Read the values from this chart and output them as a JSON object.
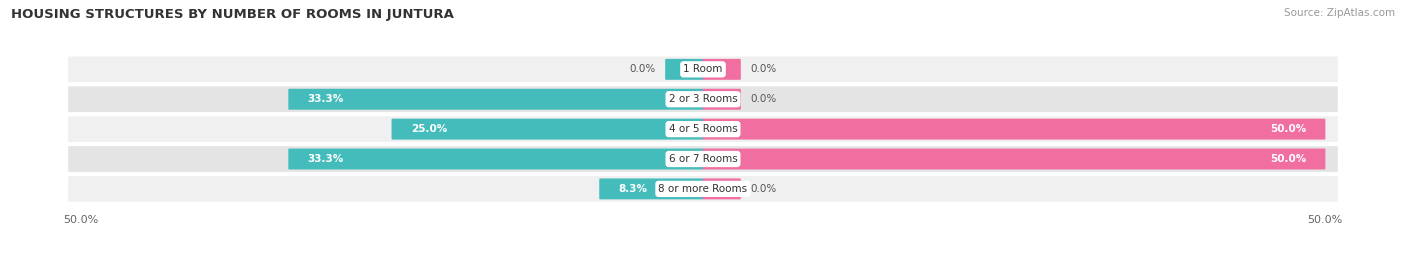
{
  "title": "HOUSING STRUCTURES BY NUMBER OF ROOMS IN JUNTURA",
  "source": "Source: ZipAtlas.com",
  "categories": [
    "1 Room",
    "2 or 3 Rooms",
    "4 or 5 Rooms",
    "6 or 7 Rooms",
    "8 or more Rooms"
  ],
  "owner_values": [
    0.0,
    33.3,
    25.0,
    33.3,
    8.3
  ],
  "renter_values": [
    0.0,
    0.0,
    50.0,
    50.0,
    0.0
  ],
  "owner_color": "#45BCBC",
  "renter_color": "#F06EA0",
  "row_bg_light": "#F0F0F0",
  "row_bg_dark": "#E4E4E4",
  "center_label_bg": "#FFFFFF",
  "background_color": "#FFFFFF",
  "axis_range": 50,
  "stub_value": 3.0,
  "label_color_dark": "#555555",
  "label_color_white": "#FFFFFF"
}
